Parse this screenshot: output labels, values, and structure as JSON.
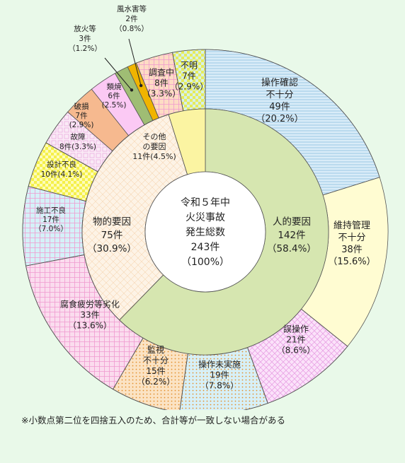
{
  "chart_data": {
    "type": "pie",
    "center": {
      "lines": [
        "令和５年中",
        "火災事故",
        "発生総数",
        "243件",
        "（100%）"
      ]
    },
    "series": [
      {
        "name": "",
        "ring": "inner",
        "categories": [
          "人的要因",
          "物的要因",
          "その他の要因"
        ],
        "values": [
          142,
          75,
          11
        ],
        "percents": [
          58.4,
          30.9,
          4.5
        ],
        "colors": [
          "#d6e6b0",
          "#fdf3e6",
          "#fbf4a2"
        ],
        "patterns": [
          "solid",
          "cross-fine",
          "solid"
        ],
        "labels": [
          [
            "人的要因",
            "142件",
            "（58.4%）"
          ],
          [
            "物的要因",
            "75件",
            "（30.9%）"
          ],
          [
            "その他",
            "の要因",
            "11件(4.5%)"
          ]
        ]
      },
      {
        "name": "",
        "ring": "outer",
        "categories": [
          "操作確認不十分",
          "維持管理不十分",
          "誤操作",
          "操作未実施",
          "監視不十分",
          "腐食疲労等劣化",
          "施工不良",
          "設計不良",
          "故障",
          "破損",
          "類焼",
          "放火等",
          "風水害等",
          "調査中",
          "不明"
        ],
        "values": [
          49,
          38,
          21,
          19,
          15,
          33,
          17,
          10,
          8,
          7,
          6,
          3,
          2,
          8,
          7
        ],
        "percents": [
          20.2,
          15.6,
          8.6,
          7.8,
          6.2,
          13.6,
          7.0,
          4.1,
          3.3,
          2.9,
          2.5,
          1.2,
          0.8,
          3.3,
          2.9
        ],
        "colors": [
          "#d9ecf8",
          "#fffcd2",
          "#fbe2fa",
          "#d7f0f7",
          "#fbe3c4",
          "#fbdcee",
          "#d5f1f8",
          "#fdfcb8",
          "#faeaf6",
          "#f6b98f",
          "#fbc9f4",
          "#9fbd74",
          "#f0b400",
          "#fddcc4",
          "#d7f1e7"
        ],
        "patterns": [
          "hlines",
          "solid",
          "cross",
          "dots",
          "dots",
          "grid",
          "grid",
          "checker",
          "squares",
          "solid",
          "solid",
          "solid",
          "solid",
          "grid",
          "checker"
        ],
        "labels": [
          [
            "操作確認",
            "不十分",
            "49件",
            "（20.2%）"
          ],
          [
            "維持管理",
            "不十分",
            "38件",
            "（15.6%）"
          ],
          [
            "誤操作",
            "21件",
            "（8.6%）"
          ],
          [
            "操作未実施",
            "19件",
            "（7.8%）"
          ],
          [
            "監視",
            "不十分",
            "15件",
            "（6.2%）"
          ],
          [
            "腐食疲労等劣化",
            "33件",
            "（13.6%）"
          ],
          [
            "施工不良",
            "17件",
            "（7.0%）"
          ],
          [
            "設計不良",
            "10件(4.1%)"
          ],
          [
            "故障",
            "8件(3.3%)"
          ],
          [
            "破損",
            "7件",
            "(2.9%)"
          ],
          [
            "類焼",
            "6件",
            "(2.5%)"
          ],
          [
            "放火等",
            "3件",
            "（1.2%）"
          ],
          [
            "風水害等",
            "2件",
            "（0.8%）"
          ],
          [
            "調査中",
            "8件",
            "（3.3%）"
          ],
          [
            "不明",
            "7件",
            "（2.9%）"
          ]
        ]
      }
    ]
  },
  "footnote": "※小数点第二位を四捨五入のため、合計等が一致しない場合がある"
}
